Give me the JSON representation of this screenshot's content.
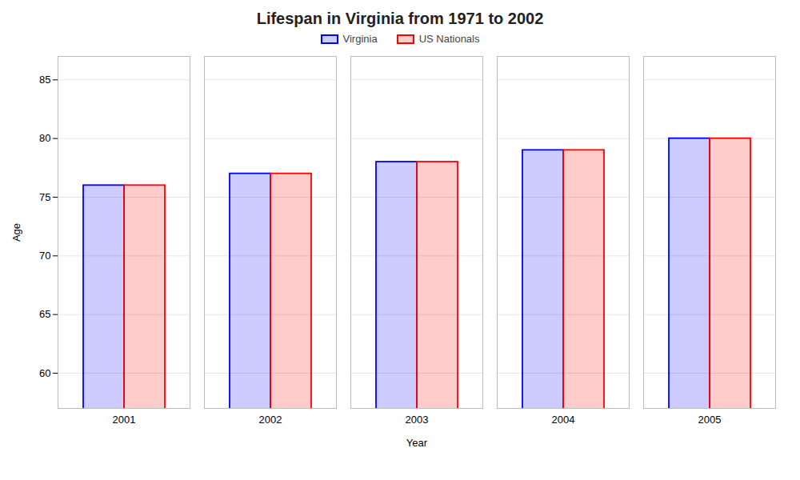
{
  "chart_data": {
    "type": "bar",
    "title": "Lifespan in Virginia from 1971 to 2002",
    "xlabel": "Year",
    "ylabel": "Age",
    "categories": [
      "2001",
      "2002",
      "2003",
      "2004",
      "2005"
    ],
    "series": [
      {
        "name": "Virginia",
        "color": "#0000ff",
        "values": [
          76,
          77,
          78,
          79,
          80
        ]
      },
      {
        "name": "US Nationals",
        "color": "#ff0000",
        "values": [
          76,
          77,
          78,
          79,
          80
        ]
      }
    ],
    "ylim": [
      57,
      87
    ],
    "yticks": [
      60,
      65,
      70,
      75,
      80,
      85
    ],
    "grid": true,
    "legend": "top"
  }
}
